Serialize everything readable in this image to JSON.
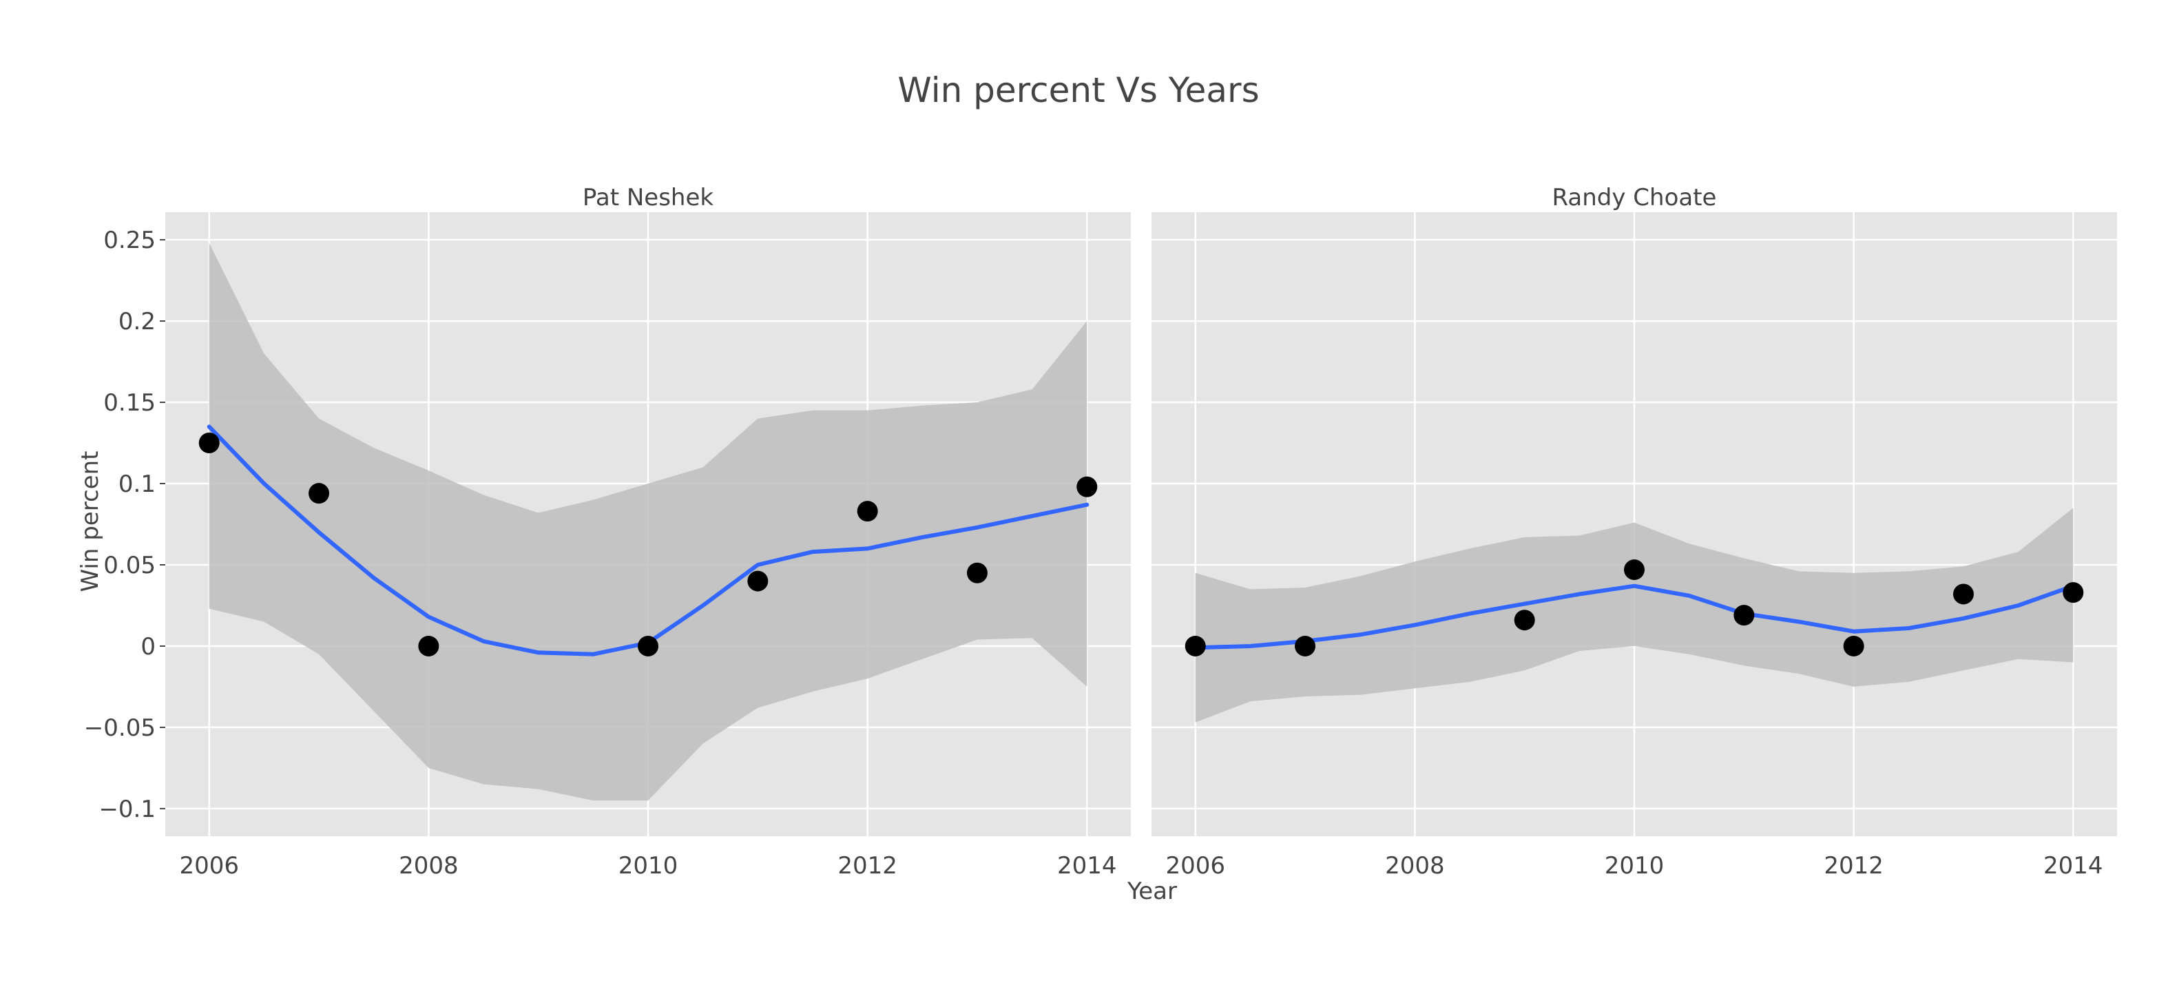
{
  "chart_data": {
    "type": "scatter",
    "title": "Win percent Vs Years",
    "xlabel": "Year",
    "ylabel": "Win percent",
    "grid": true,
    "xlim": [
      2005.6,
      2014.4
    ],
    "ylim": [
      -0.117,
      0.267
    ],
    "x_ticks": [
      2006,
      2008,
      2010,
      2012,
      2014
    ],
    "x_tick_labels": [
      "2006",
      "2008",
      "2010",
      "2012",
      "2014"
    ],
    "y_ticks": [
      0.25,
      0.2,
      0.15,
      0.1,
      0.05,
      0,
      -0.05,
      -0.1
    ],
    "y_tick_labels": [
      "0.25",
      "0.2",
      "0.15",
      "0.1",
      "0.05",
      "0",
      "−0.05",
      "−0.1"
    ],
    "colors": {
      "panel_background": "#e5e5e5",
      "grid": "#ffffff",
      "points": "#000000",
      "smooth_line": "#3366ff",
      "confidence_band": "#bebebe"
    },
    "panels": [
      {
        "title": "Pat Neshek",
        "points": {
          "x": [
            2006,
            2007,
            2008,
            2010,
            2011,
            2012,
            2013,
            2014
          ],
          "y": [
            0.125,
            0.094,
            0.0,
            0.0,
            0.04,
            0.083,
            0.045,
            0.098
          ]
        },
        "smooth": {
          "x": [
            2006,
            2006.5,
            2007,
            2007.5,
            2008,
            2008.5,
            2009,
            2009.5,
            2010,
            2010.5,
            2011,
            2011.5,
            2012,
            2012.5,
            2013,
            2013.5,
            2014
          ],
          "y": [
            0.135,
            0.1,
            0.07,
            0.042,
            0.018,
            0.003,
            -0.004,
            -0.005,
            0.002,
            0.025,
            0.05,
            0.058,
            0.06,
            0.067,
            0.073,
            0.08,
            0.087
          ],
          "lower": [
            0.023,
            0.015,
            -0.005,
            -0.04,
            -0.075,
            -0.085,
            -0.088,
            -0.095,
            -0.095,
            -0.06,
            -0.038,
            -0.028,
            -0.02,
            -0.008,
            0.004,
            0.005,
            -0.025
          ],
          "upper": [
            0.248,
            0.18,
            0.14,
            0.122,
            0.108,
            0.093,
            0.082,
            0.09,
            0.1,
            0.11,
            0.14,
            0.145,
            0.145,
            0.148,
            0.15,
            0.158,
            0.2
          ]
        }
      },
      {
        "title": "Randy Choate",
        "points": {
          "x": [
            2006,
            2007,
            2009,
            2010,
            2011,
            2012,
            2013,
            2014
          ],
          "y": [
            0.0,
            0.0,
            0.016,
            0.047,
            0.019,
            0.0,
            0.032,
            0.033
          ]
        },
        "smooth": {
          "x": [
            2006,
            2006.5,
            2007,
            2007.5,
            2008,
            2008.5,
            2009,
            2009.5,
            2010,
            2010.5,
            2011,
            2011.5,
            2012,
            2012.5,
            2013,
            2013.5,
            2014
          ],
          "y": [
            -0.001,
            0.0,
            0.003,
            0.007,
            0.013,
            0.02,
            0.026,
            0.032,
            0.037,
            0.031,
            0.02,
            0.015,
            0.009,
            0.011,
            0.017,
            0.025,
            0.037
          ],
          "lower": [
            -0.047,
            -0.034,
            -0.031,
            -0.03,
            -0.026,
            -0.022,
            -0.015,
            -0.003,
            0.0,
            -0.005,
            -0.012,
            -0.017,
            -0.025,
            -0.022,
            -0.015,
            -0.008,
            -0.01
          ],
          "upper": [
            0.045,
            0.035,
            0.036,
            0.043,
            0.052,
            0.06,
            0.067,
            0.068,
            0.076,
            0.063,
            0.054,
            0.046,
            0.045,
            0.046,
            0.049,
            0.058,
            0.085
          ]
        }
      }
    ]
  }
}
